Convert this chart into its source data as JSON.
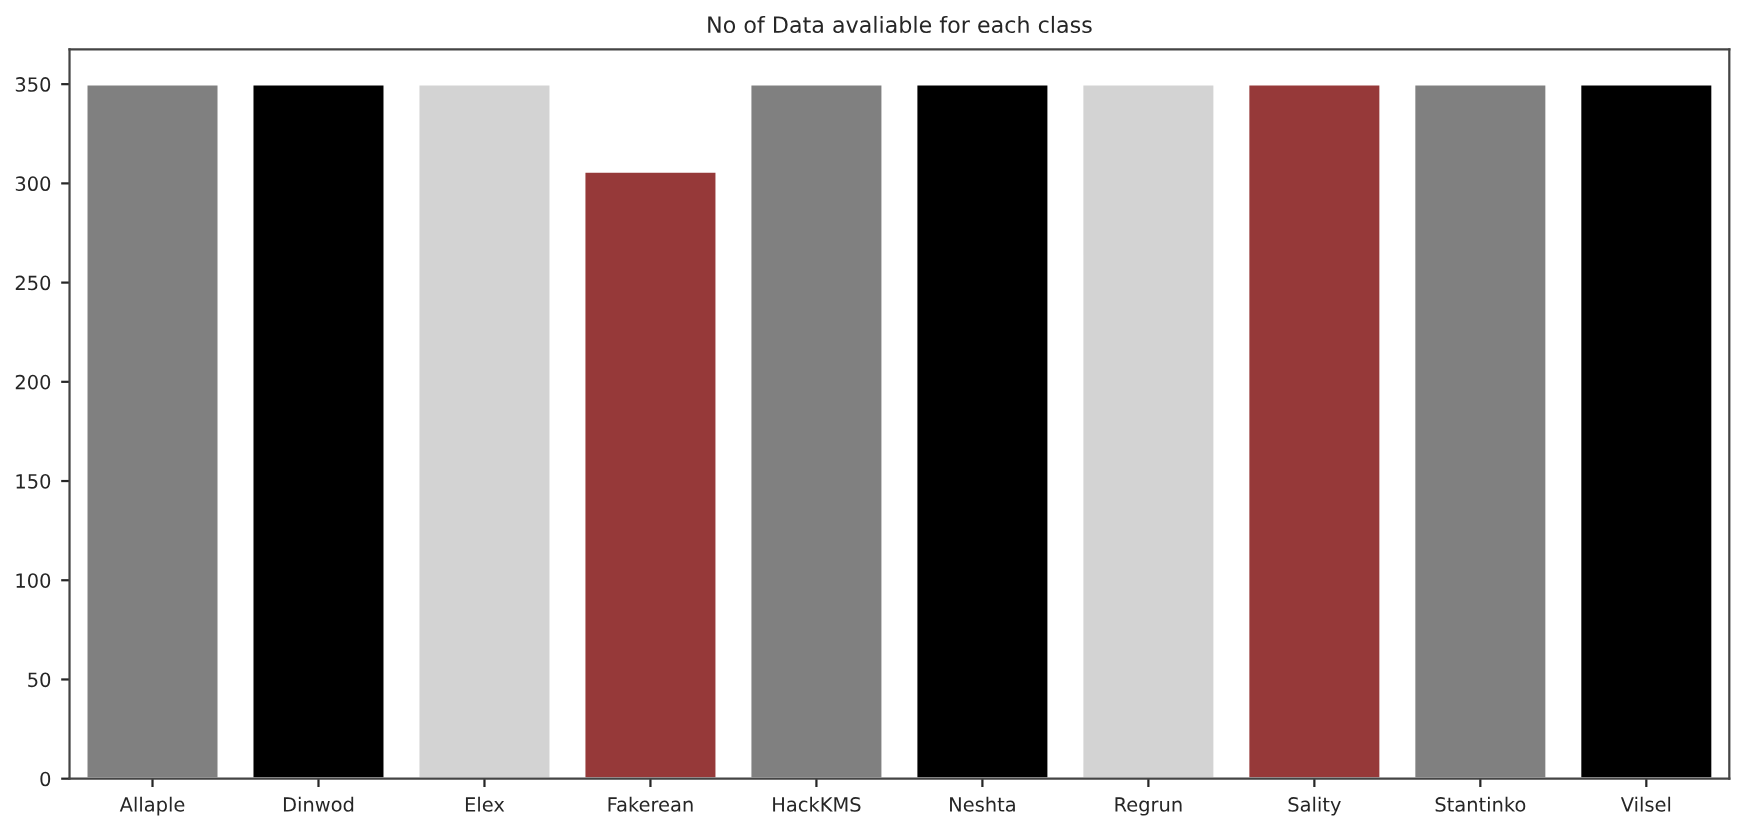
{
  "chart_data": {
    "type": "bar",
    "title": "No of Data avaliable for each class",
    "categories": [
      "Allaple",
      "Dinwod",
      "Elex",
      "Fakerean",
      "HackKMS",
      "Neshta",
      "Regrun",
      "Sality",
      "Stantinko",
      "Vilsel"
    ],
    "values": [
      350,
      350,
      350,
      306,
      350,
      350,
      350,
      350,
      350,
      350
    ],
    "colors": [
      "#808080",
      "#000000",
      "#d3d3d3",
      "#963939",
      "#808080",
      "#000000",
      "#d3d3d3",
      "#963939",
      "#808080",
      "#000000"
    ],
    "ylim": [
      0,
      367.5
    ],
    "yticks": [
      0,
      50,
      100,
      150,
      200,
      250,
      300,
      350
    ],
    "grid": false,
    "legend": false
  }
}
